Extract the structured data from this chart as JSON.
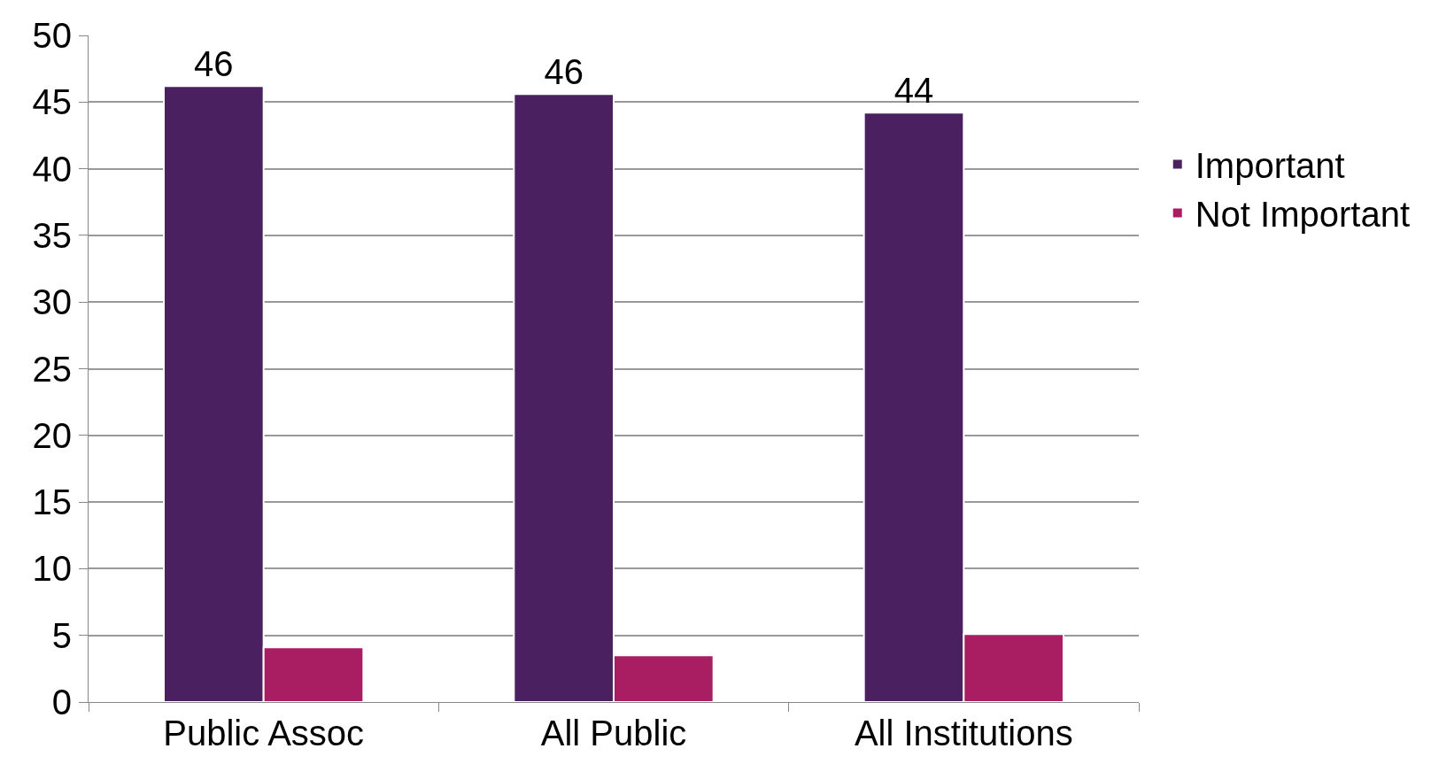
{
  "chart_data": {
    "type": "bar",
    "categories": [
      "Public Assoc",
      "All Public",
      "All Institutions"
    ],
    "series": [
      {
        "name": "Important",
        "color": "#4b2060",
        "values": [
          46.2,
          45.6,
          44.2
        ],
        "value_labels": [
          "46",
          "46",
          "44"
        ]
      },
      {
        "name": "Not Important",
        "color": "#a91d62",
        "values": [
          4.1,
          3.5,
          5.1
        ]
      }
    ],
    "ylim": [
      0,
      50
    ],
    "yticks": [
      0,
      5,
      10,
      15,
      20,
      25,
      30,
      35,
      40,
      45,
      50
    ],
    "grid": "y",
    "legend": "right"
  }
}
